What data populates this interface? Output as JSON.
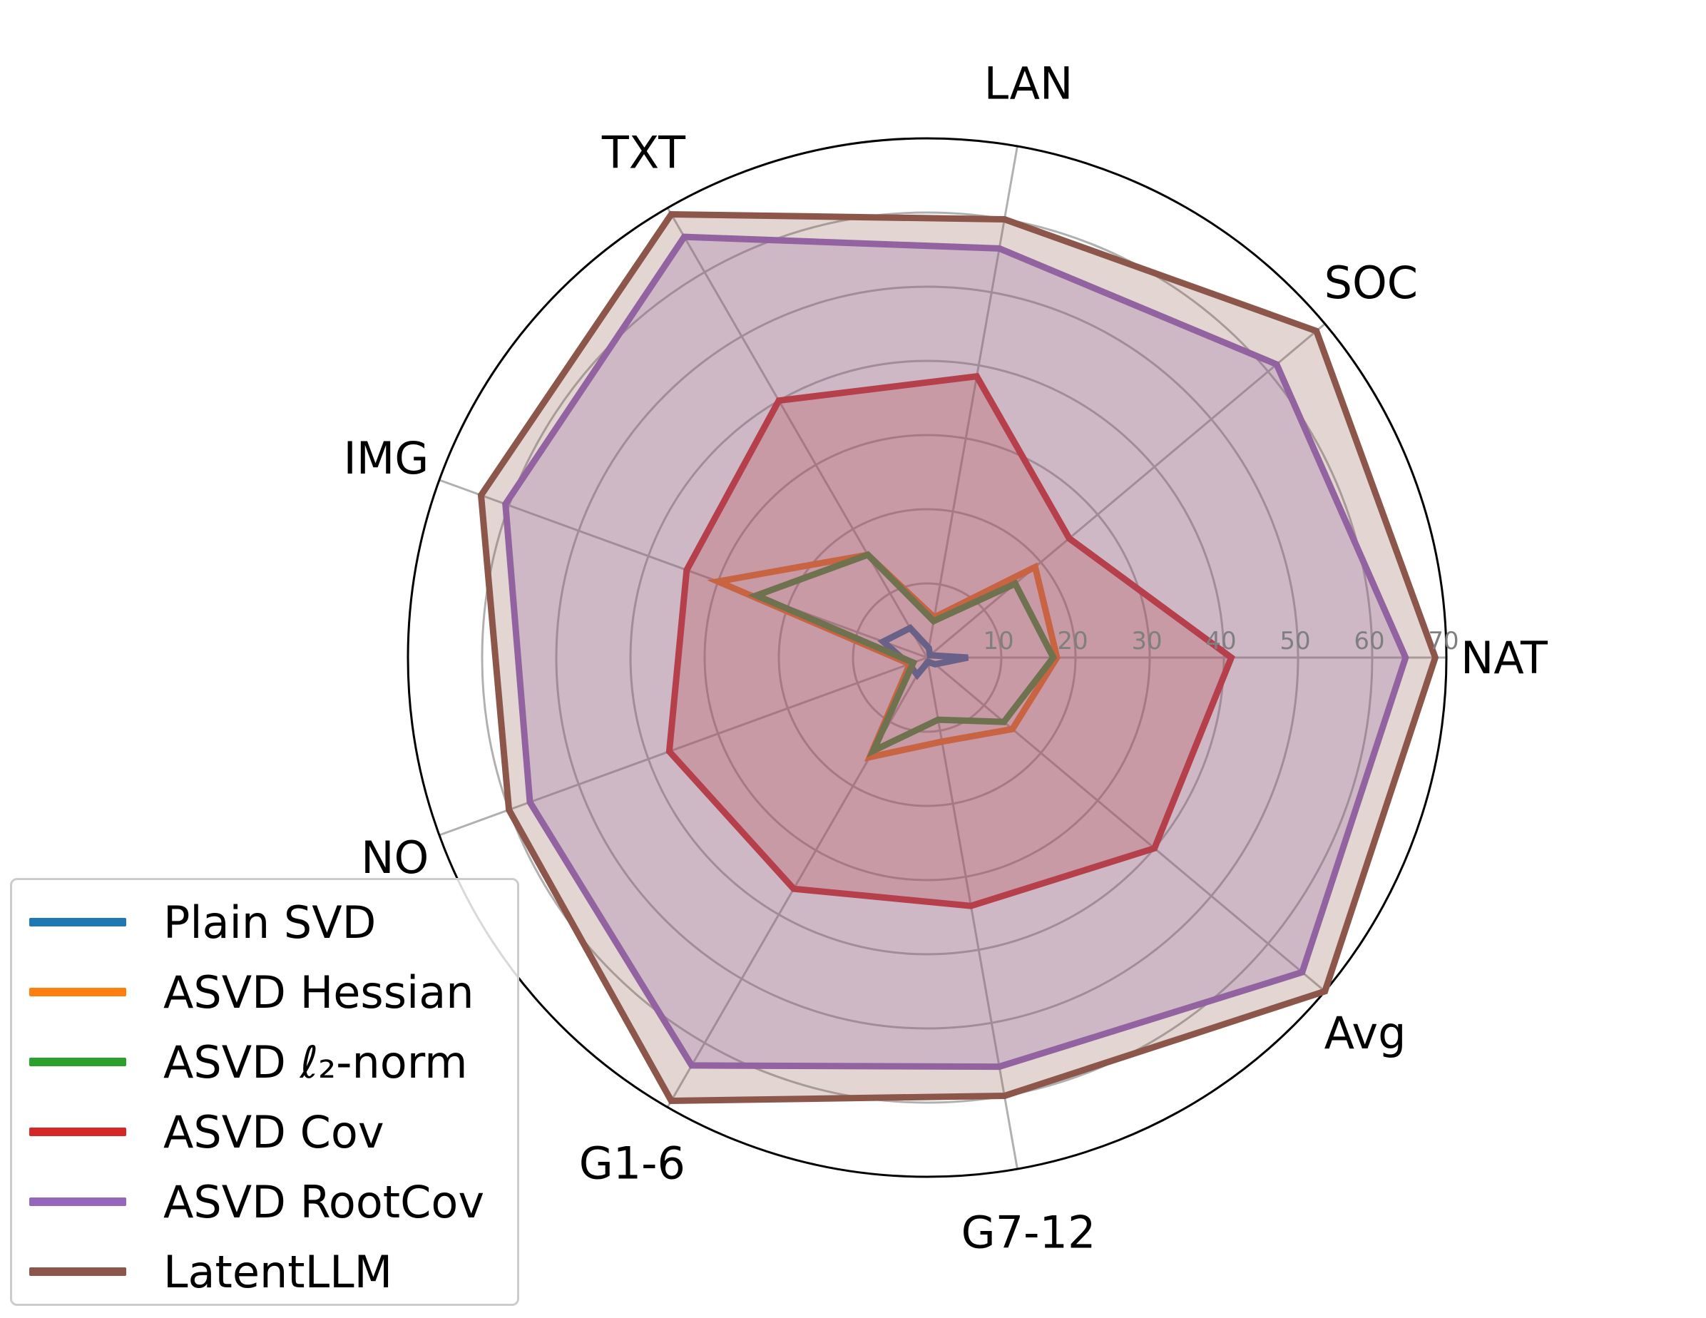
{
  "chart_data": {
    "type": "radar",
    "categories": [
      "NAT",
      "SOC",
      "LAN",
      "TXT",
      "IMG",
      "NO",
      "G1-6",
      "G7-12",
      "Avg"
    ],
    "radial_ticks": [
      10,
      20,
      30,
      40,
      50,
      60,
      70
    ],
    "rlim": [
      0,
      70
    ],
    "grid": true,
    "legend_position": "lower-left",
    "series": [
      {
        "name": "Plain SVD",
        "color": "#1f77b4",
        "fill": false,
        "values": [
          5.5,
          0.5,
          1.3,
          4.6,
          6.3,
          2.6,
          2.7,
          0.6,
          1.4
        ]
      },
      {
        "name": "ASVD Hessian",
        "color": "#ff7f0e",
        "fill": false,
        "values": [
          17.5,
          19.0,
          5.5,
          16.0,
          30.0,
          2.5,
          15.5,
          11.5,
          15.0
        ]
      },
      {
        "name": "ASVD ℓ₂-norm",
        "color": "#2ca02c",
        "fill": false,
        "values": [
          17.0,
          15.5,
          5.0,
          16.0,
          24.5,
          2.0,
          14.5,
          8.5,
          13.5
        ]
      },
      {
        "name": "ASVD Cov",
        "color": "#d62728",
        "fill": true,
        "values": [
          41.0,
          25.0,
          38.5,
          40.0,
          34.5,
          37.0,
          36.0,
          34.0,
          40.0
        ]
      },
      {
        "name": "ASVD RootCov",
        "color": "#9467bd",
        "fill": true,
        "values": [
          64.5,
          61.5,
          56.0,
          65.5,
          60.5,
          57.0,
          63.5,
          56.0,
          66.0
        ]
      },
      {
        "name": "LatentLLM",
        "color": "#8c564b",
        "fill": true,
        "values": [
          68.5,
          68.5,
          60.0,
          69.0,
          64.0,
          60.0,
          69.0,
          60.0,
          70.0
        ]
      }
    ]
  },
  "legend": {
    "items": [
      {
        "label": "Plain SVD",
        "color": "#1f77b4"
      },
      {
        "label": "ASVD Hessian",
        "color": "#ff7f0e"
      },
      {
        "label": "ASVD ℓ₂-norm",
        "color": "#2ca02c"
      },
      {
        "label": "ASVD Cov",
        "color": "#d62728"
      },
      {
        "label": "ASVD RootCov",
        "color": "#9467bd"
      },
      {
        "label": "LatentLLM",
        "color": "#8c564b"
      }
    ]
  }
}
